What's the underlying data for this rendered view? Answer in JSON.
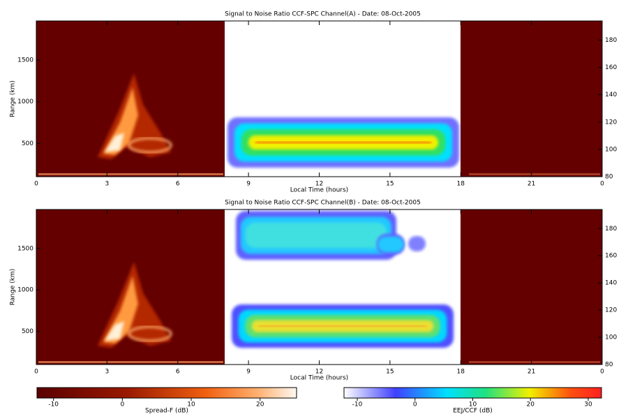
{
  "chart_data": [
    {
      "type": "heatmap",
      "title": "Signal to Noise Ratio CCF-SPC Channel(A) - Date: 08-Oct-2005",
      "xlabel": "Local Time (hours)",
      "ylabel": "Range (km)",
      "xlim": [
        0,
        24
      ],
      "xticks": [
        0,
        3,
        6,
        9,
        12,
        15,
        18,
        21,
        {
          "value": 24,
          "label": "0"
        }
      ],
      "ylim": [
        100,
        1970
      ],
      "yticks": [
        500,
        1000,
        1500
      ],
      "y2lim": [
        80,
        194
      ],
      "y2ticks": [
        80,
        100,
        120,
        140,
        160,
        180
      ]
    },
    {
      "type": "heatmap",
      "title": "Signal to Noise Ratio CCF-SPC Channel(B) - Date: 08-Oct-2005",
      "xlabel": "Local Time (hours)",
      "ylabel": "Range (km)",
      "xlim": [
        0,
        24
      ],
      "xticks": [
        0,
        3,
        6,
        9,
        12,
        15,
        18,
        21,
        {
          "value": 24,
          "label": "0"
        }
      ],
      "ylim": [
        100,
        1970
      ],
      "yticks": [
        500,
        1000,
        1500
      ],
      "y2lim": [
        80,
        194
      ],
      "y2ticks": [
        80,
        100,
        120,
        140,
        160,
        180
      ]
    }
  ],
  "colorbars": [
    {
      "label": "Spread-F (dB)",
      "lim": [
        -12.4,
        25.3
      ],
      "ticks": [
        -10,
        0,
        10,
        20
      ]
    },
    {
      "label": "EEJ/CCF (dB)",
      "lim": [
        -12.3,
        32.3
      ],
      "ticks": [
        -10,
        0,
        10,
        20,
        30
      ]
    }
  ]
}
